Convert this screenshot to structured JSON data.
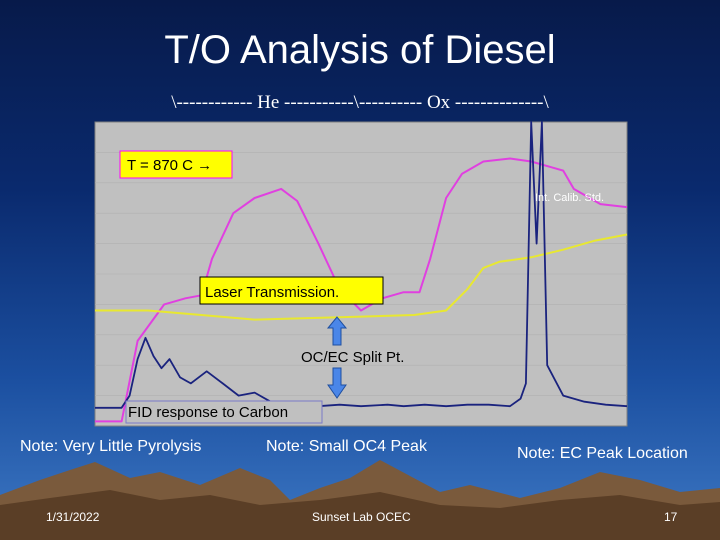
{
  "slide": {
    "title": "T/O Analysis of Diesel",
    "phase_banner": "\\------------ He -----------\\---------- Ox --------------\\",
    "notes": {
      "pyrolysis": "Note: Very Little Pyrolysis",
      "oc4": "Note: Small OC4 Peak",
      "ec_peak": "Note: EC Peak Location"
    },
    "footer": {
      "date": "1/31/2022",
      "center": "Sunset Lab OCEC",
      "page": "17"
    }
  },
  "chart_data": {
    "type": "line",
    "title": "",
    "annotations": {
      "temperature": "T = 870 C →",
      "laser": "Laser Transmission.",
      "split": "OC/EC Split Pt.",
      "fid": "FID response to Carbon",
      "calib": "Int. Calib. Std."
    },
    "colors": {
      "temperature": "#e040e0",
      "laser": "#e8e830",
      "fid": "#1a237e",
      "plot_bg": "#c0c0c0",
      "label_bg": "#ffff00",
      "label_border": "#ff00ff",
      "arrow": "#4a86e8"
    },
    "xlim": [
      0,
      100
    ],
    "ylim": [
      0,
      100
    ],
    "series": [
      {
        "key": "temperature",
        "values": [
          [
            0,
            1.5
          ],
          [
            5,
            1.5
          ],
          [
            8,
            28
          ],
          [
            13,
            40
          ],
          [
            17,
            42
          ],
          [
            20,
            43
          ],
          [
            22,
            55
          ],
          [
            26,
            70
          ],
          [
            30,
            75
          ],
          [
            35,
            78
          ],
          [
            38,
            74
          ],
          [
            42,
            60
          ],
          [
            46,
            45
          ],
          [
            50,
            38
          ],
          [
            54,
            42
          ],
          [
            58,
            44
          ],
          [
            61,
            44
          ],
          [
            63,
            55
          ],
          [
            66,
            75
          ],
          [
            69,
            83
          ],
          [
            73,
            87
          ],
          [
            78,
            88
          ],
          [
            82,
            87
          ],
          [
            86,
            85
          ],
          [
            88,
            84
          ],
          [
            90,
            78
          ],
          [
            95,
            73
          ],
          [
            100,
            72
          ]
        ]
      },
      {
        "key": "laser",
        "values": [
          [
            0,
            38
          ],
          [
            10,
            38
          ],
          [
            20,
            36.5
          ],
          [
            30,
            35
          ],
          [
            40,
            35.5
          ],
          [
            50,
            36
          ],
          [
            60,
            36.5
          ],
          [
            66,
            38
          ],
          [
            70,
            45
          ],
          [
            73,
            52
          ],
          [
            76,
            54
          ],
          [
            82,
            55.5
          ],
          [
            88,
            58
          ],
          [
            94,
            61
          ],
          [
            100,
            63
          ]
        ]
      },
      {
        "key": "fid",
        "values": [
          [
            0,
            6
          ],
          [
            5,
            6
          ],
          [
            6.5,
            10
          ],
          [
            8,
            22
          ],
          [
            9.5,
            29
          ],
          [
            11,
            23
          ],
          [
            12.5,
            19
          ],
          [
            14,
            22
          ],
          [
            16,
            16
          ],
          [
            18,
            14
          ],
          [
            21,
            18
          ],
          [
            24,
            14
          ],
          [
            27,
            10
          ],
          [
            30,
            11
          ],
          [
            33,
            8
          ],
          [
            38,
            7
          ],
          [
            42,
            6.5
          ],
          [
            46,
            7
          ],
          [
            50,
            6.5
          ],
          [
            55,
            7
          ],
          [
            58,
            6.5
          ],
          [
            62,
            7
          ],
          [
            66,
            6.5
          ],
          [
            70,
            7
          ],
          [
            74,
            7
          ],
          [
            78,
            6.5
          ],
          [
            80,
            9
          ],
          [
            81,
            14
          ],
          [
            82,
            100
          ],
          [
            83,
            60
          ],
          [
            84,
            100
          ],
          [
            85,
            20
          ],
          [
            88,
            10
          ],
          [
            92,
            8
          ],
          [
            96,
            7
          ],
          [
            100,
            6.5
          ]
        ]
      }
    ]
  }
}
